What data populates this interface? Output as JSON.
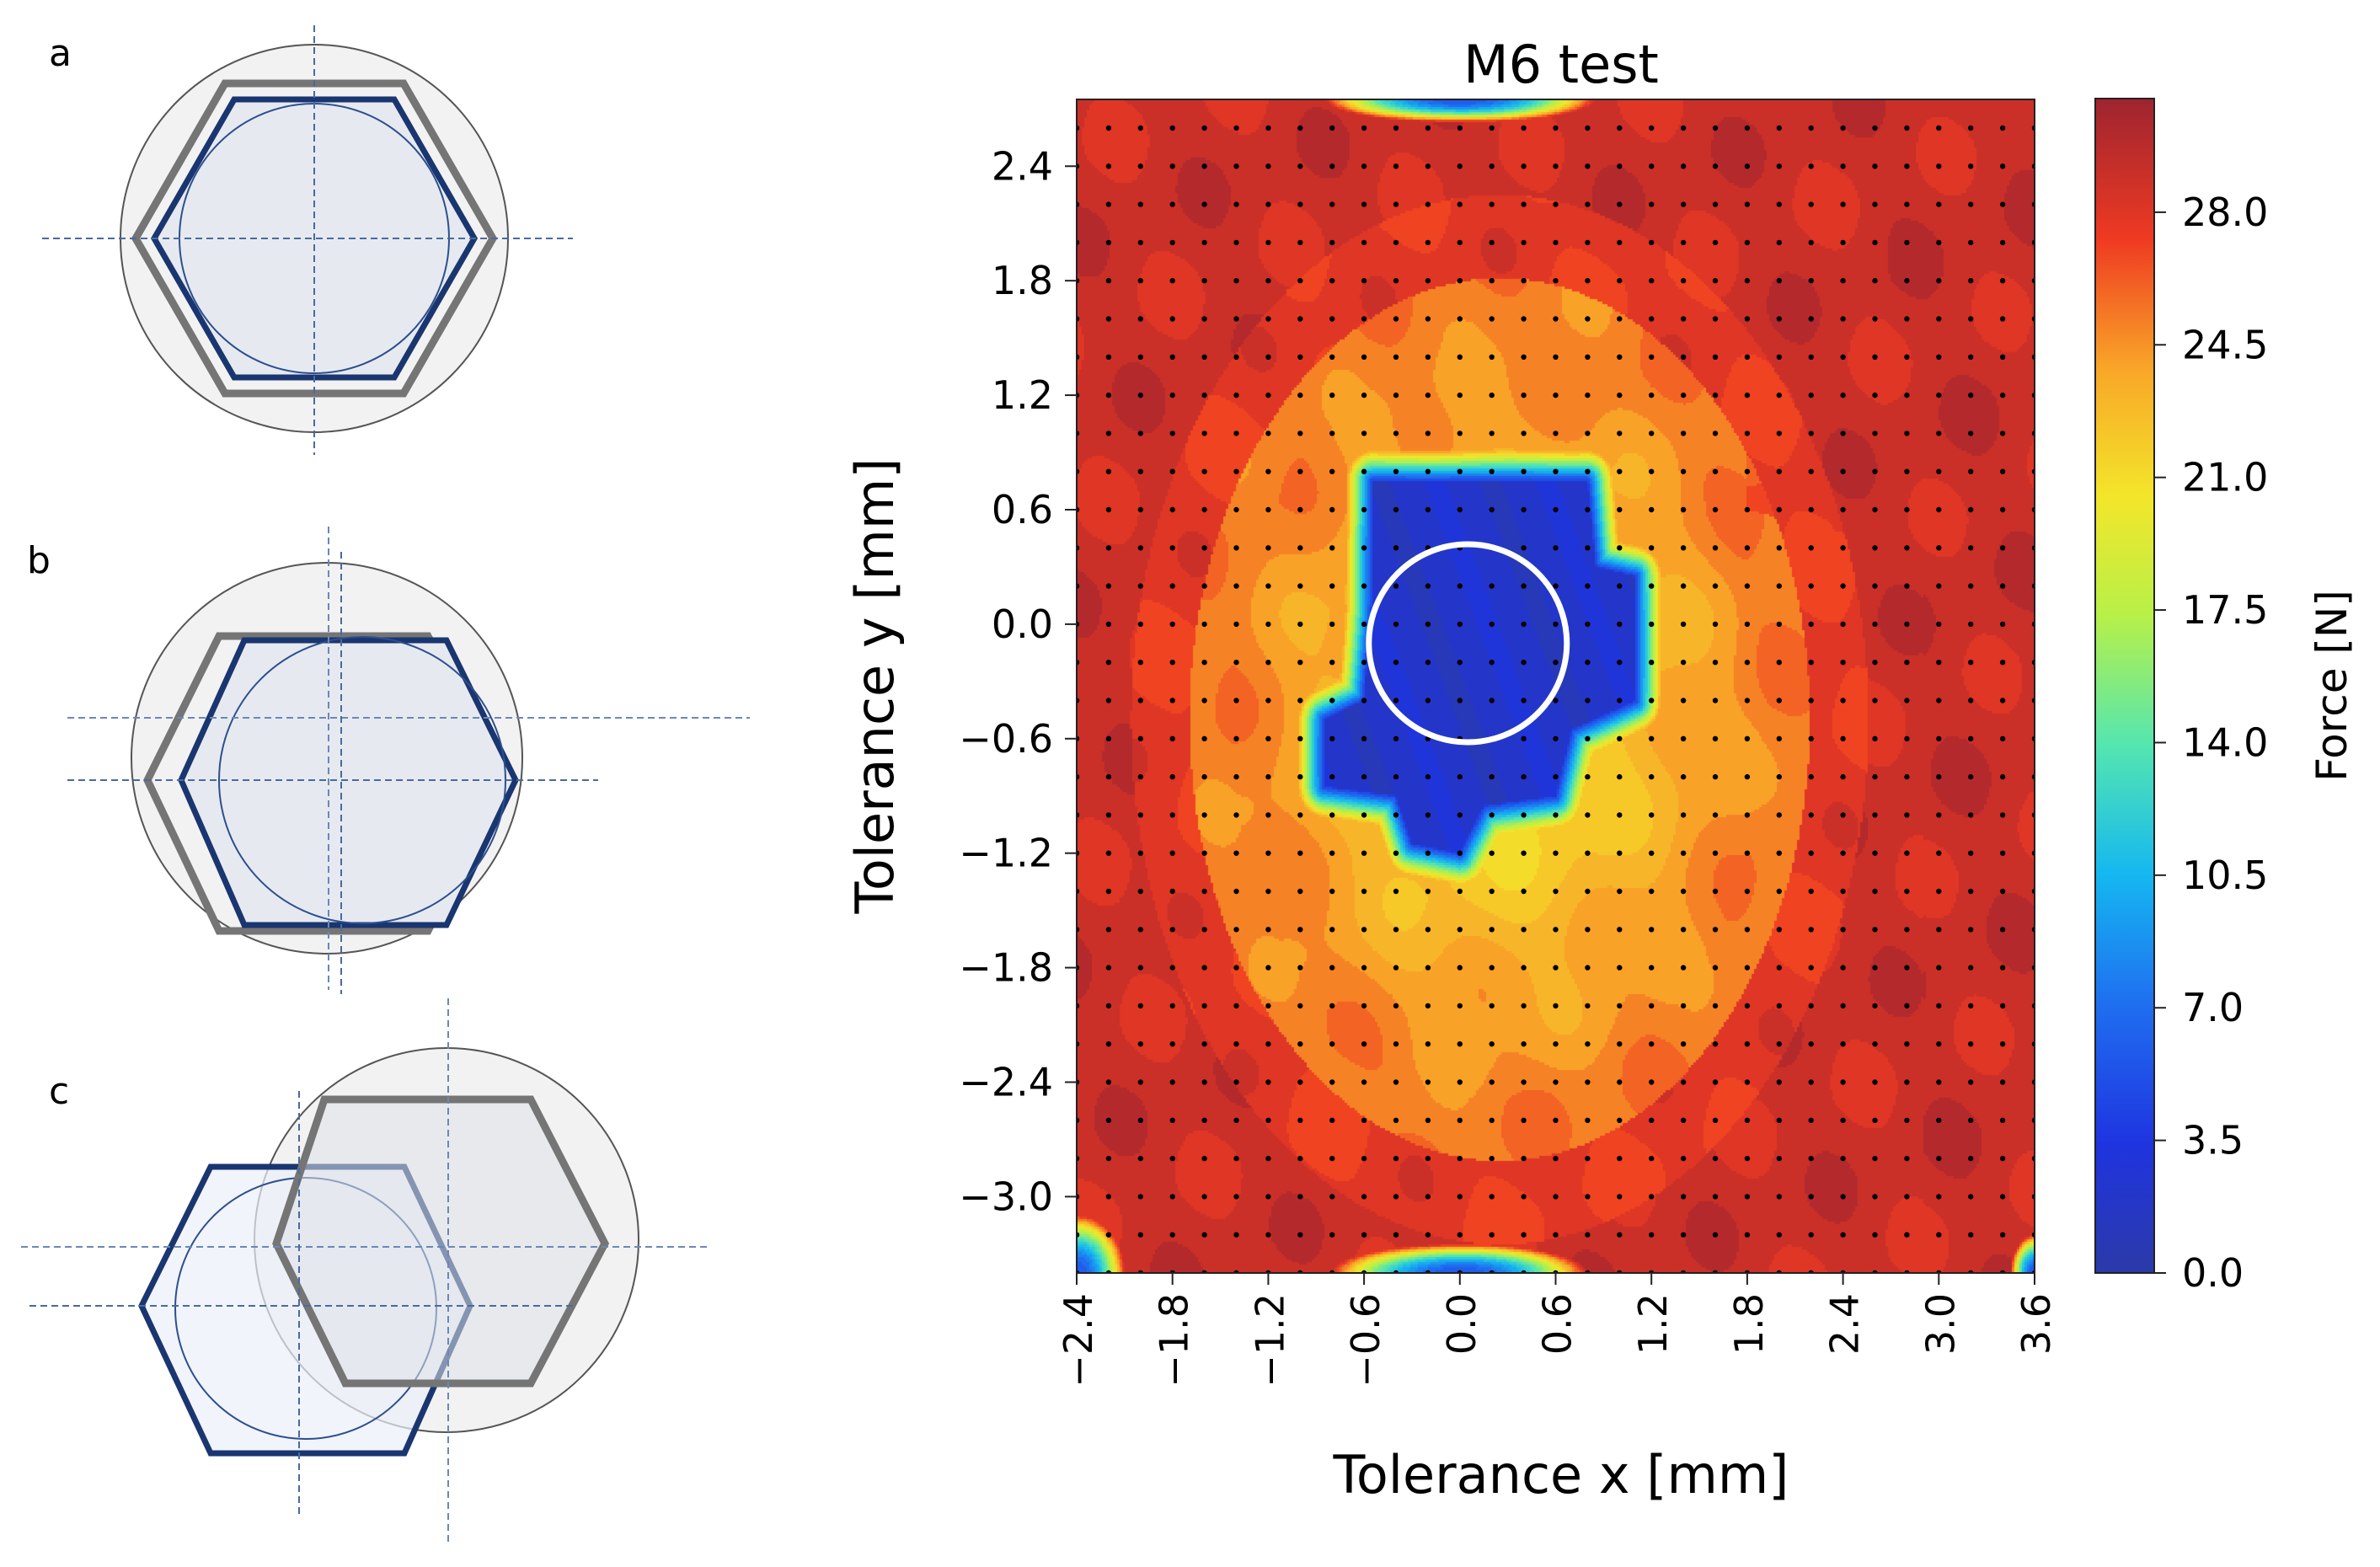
{
  "panels": [
    {
      "label": "a",
      "case": "hexagon centered in circular hole"
    },
    {
      "label": "b",
      "case": "hexagon offset inside circular hole"
    },
    {
      "label": "c",
      "case": "hexagon outside circular hole"
    }
  ],
  "colors": {
    "hex_outer": "#757575",
    "hex_inner": "#1a3670",
    "circle_outline": "#555555",
    "circle_fill": "#f2f2f2",
    "inner_fill": "#e6eaf0",
    "guide_line": "#4a6aa0",
    "marker_circle": "#ffffff",
    "dot": "#000000"
  },
  "chart_data": {
    "type": "heatmap",
    "title": "M6 test",
    "xlabel": "Tolerance x [mm]",
    "ylabel": "Tolerance y [mm]",
    "xlim": [
      -2.4,
      3.6
    ],
    "ylim": [
      -3.4,
      2.75
    ],
    "x_ticks": [
      "−2.4",
      "−1.8",
      "−1.2",
      "−0.6",
      "0.0",
      "0.6",
      "1.2",
      "1.8",
      "2.4",
      "3.0",
      "3.6"
    ],
    "x_tick_values": [
      -2.4,
      -1.8,
      -1.2,
      -0.6,
      0.0,
      0.6,
      1.2,
      1.8,
      2.4,
      3.0,
      3.6
    ],
    "y_ticks": [
      "2.4",
      "1.8",
      "1.2",
      "0.6",
      "0.0",
      "−0.6",
      "−1.2",
      "−1.8",
      "−2.4",
      "−3.0"
    ],
    "y_tick_values": [
      2.4,
      1.8,
      1.2,
      0.6,
      0.0,
      -0.6,
      -1.2,
      -1.8,
      -2.4,
      -3.0
    ],
    "colorbar": {
      "label": "Force [N]",
      "range": [
        0.0,
        31.0
      ],
      "ticks": [
        "0.0",
        "3.5",
        "7.0",
        "10.5",
        "14.0",
        "17.5",
        "21.0",
        "24.5",
        "28.0"
      ],
      "tick_values": [
        0.0,
        3.5,
        7.0,
        10.5,
        14.0,
        17.5,
        21.0,
        24.5,
        28.0
      ]
    },
    "grid_points": {
      "x_start": -2.4,
      "x_step": 0.2,
      "y_start": -3.4,
      "y_step": 0.2
    },
    "marker_circle": {
      "cx": 0.05,
      "cy": -0.1,
      "r": 0.62
    },
    "force_model": {
      "low_zone_force": 2.5,
      "low_zone_hull_mm": [
        [
          -0.55,
          0.75
        ],
        [
          0.8,
          0.75
        ],
        [
          0.85,
          0.3
        ],
        [
          1.1,
          0.25
        ],
        [
          1.1,
          -0.4
        ],
        [
          0.7,
          -0.55
        ],
        [
          0.6,
          -0.9
        ],
        [
          0.15,
          -0.95
        ],
        [
          0.0,
          -1.2
        ],
        [
          -0.3,
          -1.15
        ],
        [
          -0.4,
          -0.9
        ],
        [
          -0.85,
          -0.85
        ],
        [
          -0.85,
          -0.5
        ],
        [
          -0.6,
          -0.4
        ],
        [
          -0.55,
          0.1
        ],
        [
          -0.55,
          0.75
        ]
      ],
      "dark_corner_force": 29.5,
      "corner_low_spots": [
        {
          "x": 0.0,
          "y": 2.75,
          "rx": 0.85,
          "ry": 0.12
        },
        {
          "x": 0.0,
          "y": -3.4,
          "rx": 0.8,
          "ry": 0.15
        },
        {
          "x": -2.4,
          "y": -3.4,
          "rx": 0.3,
          "ry": 0.3
        },
        {
          "x": 3.6,
          "y": -3.4,
          "rx": 0.15,
          "ry": 0.2
        }
      ]
    }
  }
}
